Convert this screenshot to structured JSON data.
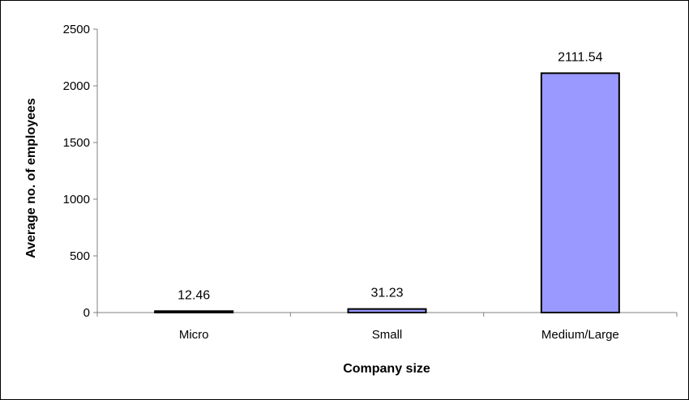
{
  "chart_data": {
    "type": "bar",
    "title": "",
    "xlabel": "Company size",
    "ylabel": "Average no. of employees",
    "categories": [
      "Micro",
      "Small",
      "Medium/Large"
    ],
    "values": [
      12.46,
      31.23,
      2111.54
    ],
    "data_labels": [
      "12.46",
      "31.23",
      "2111.54"
    ],
    "ylim": [
      0,
      2500
    ],
    "yticks": [
      0,
      500,
      1000,
      1500,
      2000,
      2500
    ],
    "grid": false,
    "legend": "none",
    "colors": {
      "bar_fill": "#9999ff",
      "bar_edge": "#000000",
      "axis": "#808080",
      "frame": "#000000"
    }
  }
}
